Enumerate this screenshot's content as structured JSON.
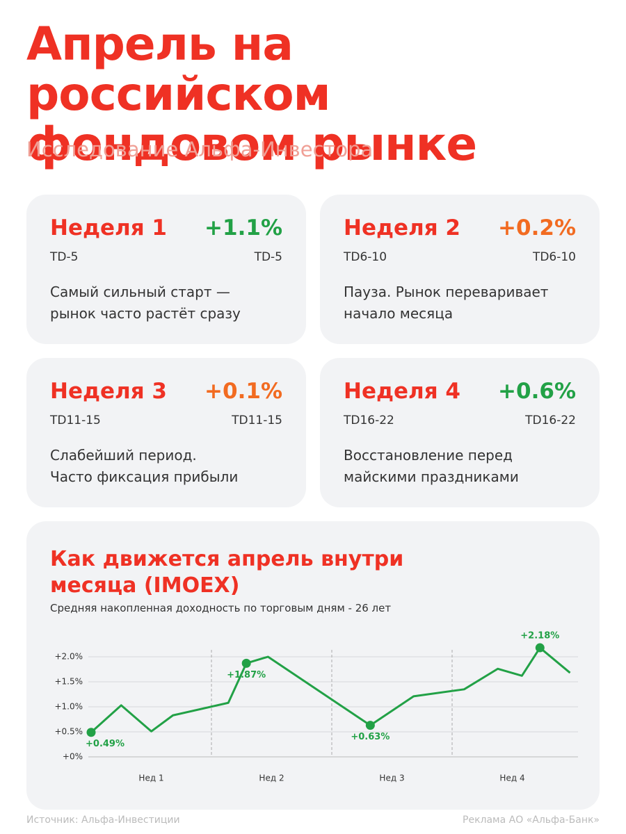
{
  "header": {
    "title": "Апрель на российском фондовом рынке",
    "subtitle": "Исследование Альфа-Инвестора"
  },
  "cards": [
    {
      "title": "Неделя 1",
      "value": "+1.1%",
      "period": "TD-5",
      "period_right": "TD-5",
      "color": "#22a146",
      "text": [
        "Самый сильный старт —",
        "рынок часто растёт сразу"
      ]
    },
    {
      "title": "Неделя 2",
      "value": "+0.2%",
      "period": "TD6-10",
      "period_right": "TD6-10",
      "color": "#f26b21",
      "text": [
        "Пауза. Рынок переваривает",
        "начало месяца"
      ]
    },
    {
      "title": "Неделя 3",
      "value": "+0.1%",
      "period": "TD11-15",
      "period_right": "TD11-15",
      "color": "#f26b21",
      "text": [
        "Слабейший период.",
        "Часто фиксация прибыли"
      ]
    },
    {
      "title": "Неделя 4",
      "value": "+0.6%",
      "period": "TD16-22",
      "period_right": "TD16-22",
      "color": "#22a146",
      "text": [
        "Восстановление перед",
        "майскими праздниками"
      ]
    }
  ],
  "chart_data": {
    "type": "line",
    "title": "Как движется апрель внутри месяца (IMOEX)",
    "subtitle": "Средняя накопленная доходность по торговым дням - 26 лет",
    "x": [
      0,
      0.25,
      0.5,
      0.68,
      1.14,
      1.29,
      1.47,
      2.32,
      2.68,
      3.1,
      3.38,
      3.58,
      3.73,
      3.98
    ],
    "values": [
      0.49,
      1.03,
      0.51,
      0.83,
      1.08,
      1.87,
      2.0,
      0.63,
      1.21,
      1.35,
      1.76,
      1.62,
      2.18,
      1.68
    ],
    "value_labels": [
      "+0.49%",
      null,
      null,
      null,
      null,
      "+1.87%",
      null,
      "+0.63%",
      null,
      null,
      null,
      null,
      "+2.18%",
      null
    ],
    "color": "#22a146",
    "xlim": [
      0,
      4
    ],
    "xticks": [
      {
        "value": 0.5,
        "label": "Нед 1"
      },
      {
        "value": 1.5,
        "label": "Нед 2"
      },
      {
        "value": 2.5,
        "label": "Нед 3"
      },
      {
        "value": 3.5,
        "label": "Нед 4"
      }
    ],
    "xgrid": [
      1,
      2,
      3
    ],
    "ylim": [
      0,
      2
    ],
    "yticks": [
      {
        "value": 0,
        "label": "+0%"
      },
      {
        "value": 0.5,
        "label": "+0.5%"
      },
      {
        "value": 1,
        "label": "+1.0%"
      },
      {
        "value": 1.5,
        "label": "+1.5%"
      },
      {
        "value": 2,
        "label": "+2.0%"
      }
    ],
    "grid": true
  },
  "footer": {
    "source": "Источник: Альфа-Инвестиции",
    "ad": "Реклама АО «Альфа-Банк»"
  }
}
